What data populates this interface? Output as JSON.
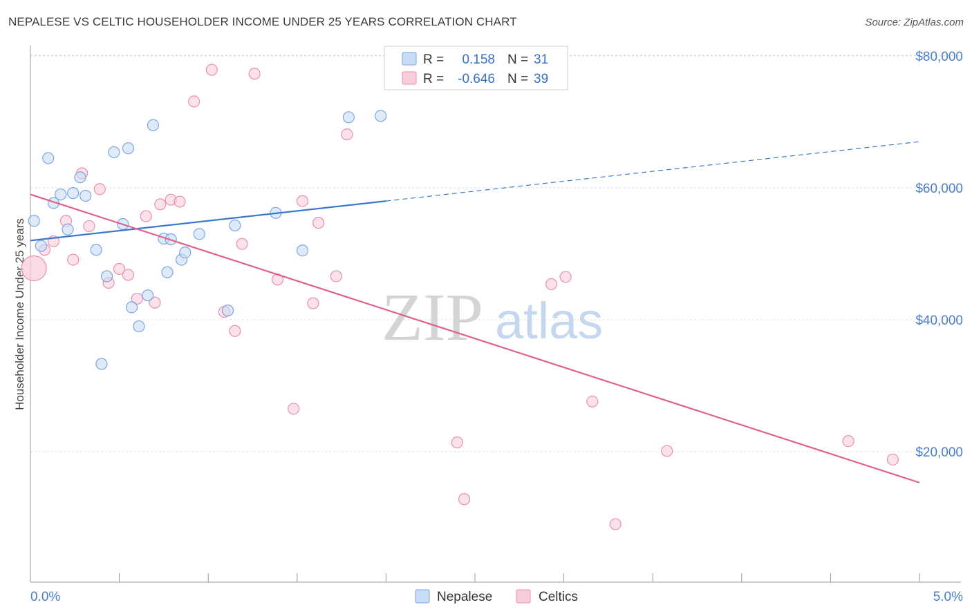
{
  "header": {
    "title": "NEPALESE VS CELTIC HOUSEHOLDER INCOME UNDER 25 YEARS CORRELATION CHART",
    "source": "Source: ZipAtlas.com"
  },
  "watermark": {
    "zip": "ZIP",
    "atlas": "atlas"
  },
  "legend_top": {
    "r_label": "R =",
    "n_label": "N =",
    "nepalese": {
      "r": "0.158",
      "n": "31"
    },
    "celtics": {
      "r": "-0.646",
      "n": "39"
    }
  },
  "chart_data": {
    "type": "scatter",
    "ylabel": "Householder Income Under 25 years",
    "xlim": [
      0,
      5
    ],
    "ylim": [
      2000,
      82000
    ],
    "x_tick_labels": [
      "0.0%",
      "5.0%"
    ],
    "y_ticks": [
      {
        "value": 20000,
        "label": "$20,000"
      },
      {
        "value": 40000,
        "label": "$40,000"
      },
      {
        "value": 60000,
        "label": "$60,000"
      },
      {
        "value": 80000,
        "label": "$80,000"
      }
    ],
    "grid": true,
    "legend_position": "top-center",
    "series": [
      {
        "name": "Nepalese",
        "color": "#7aa6e0",
        "fill": "#c9dcf5",
        "trend": {
          "x0": 0.0,
          "y0": 52000,
          "x1": 2.0,
          "y1": 58000,
          "dash_to_x": 5.0,
          "dash_to_y": 67000,
          "color": "#3a78d0"
        },
        "points": [
          {
            "x": 0.02,
            "y": 55000
          },
          {
            "x": 0.06,
            "y": 51200
          },
          {
            "x": 0.1,
            "y": 64500
          },
          {
            "x": 0.13,
            "y": 57700
          },
          {
            "x": 0.17,
            "y": 59000
          },
          {
            "x": 0.21,
            "y": 53700
          },
          {
            "x": 0.24,
            "y": 59200
          },
          {
            "x": 0.28,
            "y": 61600
          },
          {
            "x": 0.31,
            "y": 58800
          },
          {
            "x": 0.37,
            "y": 50600
          },
          {
            "x": 0.4,
            "y": 33300
          },
          {
            "x": 0.43,
            "y": 46600
          },
          {
            "x": 0.47,
            "y": 65400
          },
          {
            "x": 0.52,
            "y": 54500
          },
          {
            "x": 0.55,
            "y": 66000
          },
          {
            "x": 0.57,
            "y": 41900
          },
          {
            "x": 0.61,
            "y": 39000
          },
          {
            "x": 0.66,
            "y": 43700
          },
          {
            "x": 0.69,
            "y": 69500
          },
          {
            "x": 0.75,
            "y": 52300
          },
          {
            "x": 0.77,
            "y": 47200
          },
          {
            "x": 0.79,
            "y": 52200
          },
          {
            "x": 0.85,
            "y": 49100
          },
          {
            "x": 0.87,
            "y": 50200
          },
          {
            "x": 0.95,
            "y": 53000
          },
          {
            "x": 1.11,
            "y": 41400
          },
          {
            "x": 1.15,
            "y": 54300
          },
          {
            "x": 1.38,
            "y": 56200
          },
          {
            "x": 1.53,
            "y": 50500
          },
          {
            "x": 1.79,
            "y": 70700
          },
          {
            "x": 1.97,
            "y": 70900
          }
        ]
      },
      {
        "name": "Celtics",
        "color": "#ea8fae",
        "fill": "#f8cddb",
        "trend": {
          "x0": 0.0,
          "y0": 59000,
          "x1": 5.0,
          "y1": 15300,
          "color": "#e0608c"
        },
        "points": [
          {
            "x": 0.02,
            "y": 47800,
            "big": true
          },
          {
            "x": 0.08,
            "y": 50600
          },
          {
            "x": 0.13,
            "y": 51900
          },
          {
            "x": 0.2,
            "y": 55000
          },
          {
            "x": 0.24,
            "y": 49100
          },
          {
            "x": 0.29,
            "y": 62200
          },
          {
            "x": 0.33,
            "y": 54200
          },
          {
            "x": 0.39,
            "y": 59800
          },
          {
            "x": 0.44,
            "y": 45600
          },
          {
            "x": 0.5,
            "y": 47700
          },
          {
            "x": 0.55,
            "y": 46800
          },
          {
            "x": 0.6,
            "y": 43200
          },
          {
            "x": 0.65,
            "y": 55700
          },
          {
            "x": 0.7,
            "y": 42600
          },
          {
            "x": 0.73,
            "y": 57500
          },
          {
            "x": 0.79,
            "y": 58200
          },
          {
            "x": 0.84,
            "y": 57900
          },
          {
            "x": 0.92,
            "y": 73100
          },
          {
            "x": 1.02,
            "y": 77900
          },
          {
            "x": 1.09,
            "y": 41200
          },
          {
            "x": 1.15,
            "y": 38300
          },
          {
            "x": 1.19,
            "y": 51500
          },
          {
            "x": 1.26,
            "y": 77300
          },
          {
            "x": 1.39,
            "y": 46100
          },
          {
            "x": 1.48,
            "y": 26500
          },
          {
            "x": 1.53,
            "y": 58000
          },
          {
            "x": 1.59,
            "y": 42500
          },
          {
            "x": 1.62,
            "y": 54700
          },
          {
            "x": 1.72,
            "y": 46600
          },
          {
            "x": 1.78,
            "y": 68100
          },
          {
            "x": 2.4,
            "y": 21400
          },
          {
            "x": 2.44,
            "y": 12800
          },
          {
            "x": 2.93,
            "y": 45400
          },
          {
            "x": 3.01,
            "y": 46500
          },
          {
            "x": 3.16,
            "y": 27600
          },
          {
            "x": 3.29,
            "y": 9000
          },
          {
            "x": 3.58,
            "y": 20100
          },
          {
            "x": 4.6,
            "y": 21600
          },
          {
            "x": 4.85,
            "y": 18800
          }
        ]
      }
    ]
  }
}
